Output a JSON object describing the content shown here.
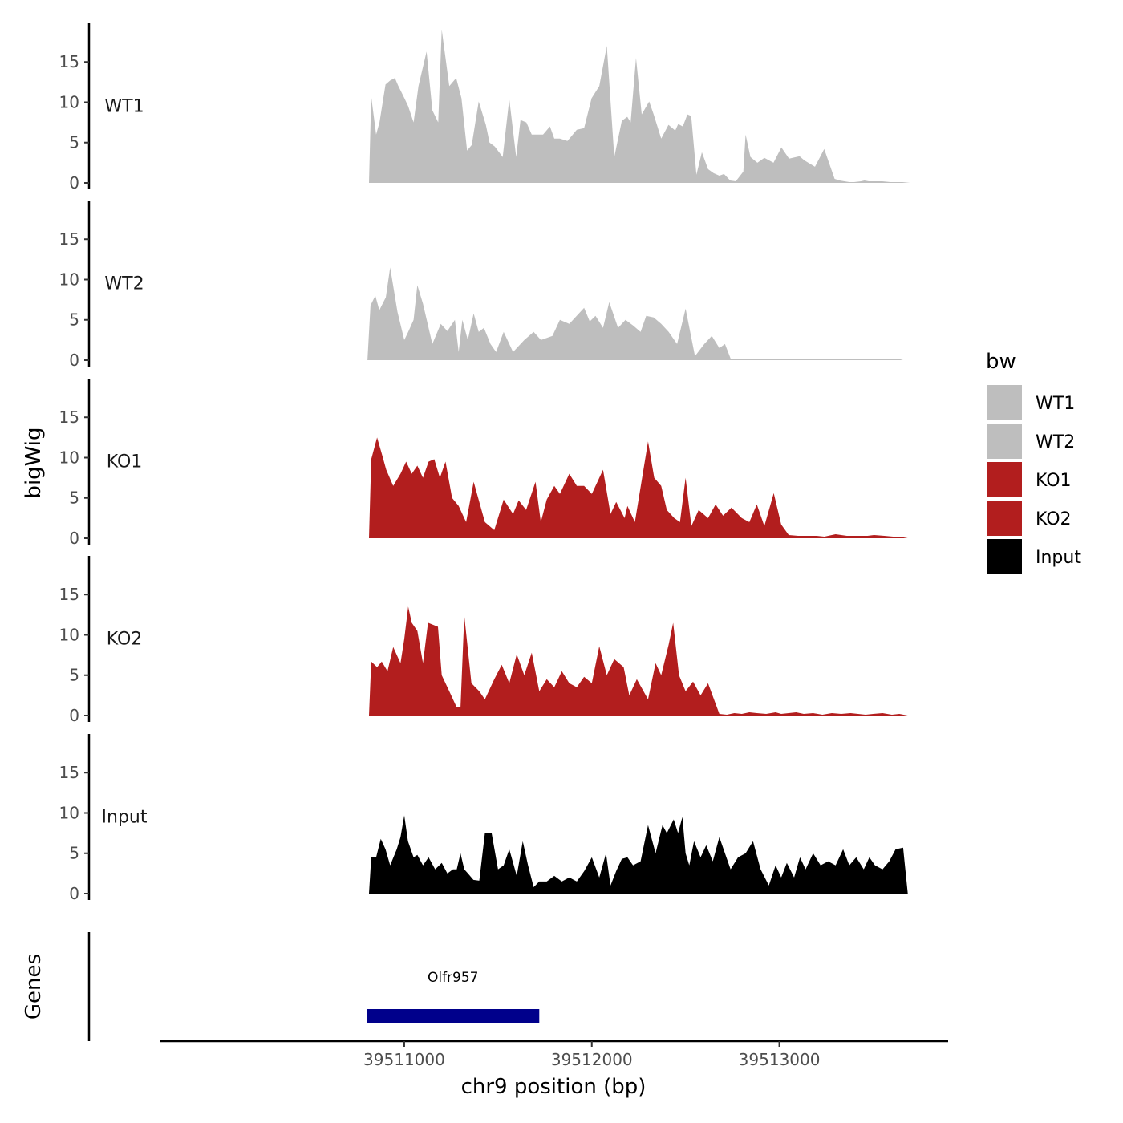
{
  "chart_data": {
    "type": "area",
    "ylabel": "bigWig",
    "xlabel": "chr9 position (bp)",
    "xlim": [
      39509700,
      39513900
    ],
    "ylim": [
      0,
      19.6
    ],
    "y_ticks": [
      0,
      5,
      10,
      15
    ],
    "x_ticks": [
      39511000,
      39512000,
      39513000
    ],
    "x_tick_labels": [
      "39511000",
      "39512000",
      "39513000"
    ],
    "grid": false,
    "legend": {
      "title": "bw",
      "position": "right",
      "entries": [
        {
          "label": "WT1",
          "color": "#bebebe"
        },
        {
          "label": "WT2",
          "color": "#bebebe"
        },
        {
          "label": "KO1",
          "color": "#b21e1e"
        },
        {
          "label": "KO2",
          "color": "#b21e1e"
        },
        {
          "label": "Input",
          "color": "#000000"
        }
      ]
    },
    "series": [
      {
        "name": "WT1",
        "color": "#bebebe",
        "x": [
          39510812,
          39510824,
          39510850,
          39510868,
          39510900,
          39510925,
          39510950,
          39510967,
          39511001,
          39511021,
          39511050,
          39511076,
          39511119,
          39511150,
          39511181,
          39511200,
          39511240,
          39511277,
          39511305,
          39511335,
          39511360,
          39511397,
          39511435,
          39511455,
          39511483,
          39511525,
          39511560,
          39511597,
          39511620,
          39511651,
          39511680,
          39511710,
          39511740,
          39511777,
          39511800,
          39511830,
          39511870,
          39511920,
          39511959,
          39511999,
          39512040,
          39512080,
          39512120,
          39512160,
          39512189,
          39512207,
          39512236,
          39512266,
          39512306,
          39512330,
          39512370,
          39512409,
          39512445,
          39512461,
          39512485,
          39512510,
          39512530,
          39512558,
          39512587,
          39512620,
          39512650,
          39512680,
          39512705,
          39512738,
          39512768,
          39512808,
          39512820,
          39512846,
          39512883,
          39512920,
          39512969,
          39513011,
          39513052,
          39513108,
          39513133,
          39513190,
          39513239,
          39513295,
          39513322,
          39513347,
          39513373,
          39513399,
          39513435,
          39513454,
          39513477,
          39513508,
          39513549,
          39513592,
          39513629,
          39513656,
          39513697
        ],
        "y": [
          0,
          10.7,
          6.0,
          7.5,
          12.2,
          12.7,
          13.0,
          12.1,
          10.5,
          9.5,
          7.5,
          12.0,
          16.3,
          9.0,
          7.5,
          19.0,
          12.0,
          13.0,
          10.5,
          4.0,
          4.7,
          10.1,
          7.2,
          5.0,
          4.5,
          3.2,
          10.4,
          3.2,
          7.8,
          7.5,
          6.0,
          6.0,
          6.0,
          7.0,
          5.5,
          5.5,
          5.2,
          6.6,
          6.8,
          10.5,
          12.0,
          17.0,
          3.2,
          7.7,
          8.2,
          7.5,
          15.5,
          8.5,
          10.1,
          8.5,
          5.5,
          7.2,
          6.5,
          7.3,
          7.0,
          8.5,
          8.3,
          1.0,
          3.8,
          1.7,
          1.2,
          0.9,
          1.1,
          0.3,
          0.2,
          1.4,
          6.0,
          3.2,
          2.5,
          3.1,
          2.5,
          4.4,
          3.0,
          3.3,
          2.8,
          2.0,
          4.2,
          0.5,
          0.3,
          0.2,
          0.1,
          0.1,
          0.2,
          0.3,
          0.2,
          0.2,
          0.2,
          0.1,
          0.1,
          0.1,
          0
        ]
      },
      {
        "name": "WT2",
        "color": "#bebebe",
        "x": [
          39510804,
          39510820,
          39510846,
          39510867,
          39510902,
          39510925,
          39510964,
          39511000,
          39511021,
          39511050,
          39511070,
          39511100,
          39511150,
          39511195,
          39511230,
          39511270,
          39511290,
          39511310,
          39511339,
          39511370,
          39511397,
          39511425,
          39511460,
          39511490,
          39511530,
          39511580,
          39511640,
          39511690,
          39511729,
          39511790,
          39511830,
          39511880,
          39511959,
          39511989,
          39512020,
          39512060,
          39512093,
          39512140,
          39512180,
          39512220,
          39512260,
          39512290,
          39512330,
          39512370,
          39512410,
          39512455,
          39512500,
          39512550,
          39512600,
          39512640,
          39512680,
          39512710,
          39512740,
          39512760,
          39512786,
          39512815,
          39512830,
          39512882,
          39512920,
          39512960,
          39512990,
          39513030,
          39513062,
          39513090,
          39513132,
          39513160,
          39513200,
          39513243,
          39513280,
          39513320,
          39513360,
          39513400,
          39513445,
          39513480,
          39513520,
          39513560,
          39513600,
          39513630,
          39513660
        ],
        "y": [
          0,
          6.8,
          8.0,
          6.2,
          7.8,
          11.5,
          6.0,
          2.5,
          3.5,
          5.0,
          9.3,
          7.0,
          2.0,
          4.5,
          3.6,
          5.0,
          1.0,
          5.0,
          2.5,
          5.8,
          3.5,
          4.0,
          2.0,
          1.0,
          3.5,
          1.0,
          2.5,
          3.5,
          2.5,
          3.0,
          5.0,
          4.5,
          6.5,
          4.8,
          5.5,
          4.0,
          7.2,
          4.0,
          5.0,
          4.3,
          3.5,
          5.5,
          5.3,
          4.5,
          3.5,
          2.0,
          6.4,
          0.5,
          2.0,
          3.0,
          1.5,
          2.0,
          0.2,
          0.1,
          0.2,
          0.1,
          0.1,
          0.1,
          0.1,
          0.2,
          0.1,
          0.1,
          0.1,
          0.1,
          0.2,
          0.1,
          0.1,
          0.1,
          0.2,
          0.2,
          0.1,
          0.1,
          0.1,
          0.1,
          0.1,
          0.1,
          0.2,
          0.2,
          0
        ]
      },
      {
        "name": "KO1",
        "color": "#b21e1e",
        "x": [
          39510812,
          39510824,
          39510855,
          39510880,
          39510904,
          39510941,
          39510980,
          39511010,
          39511040,
          39511070,
          39511100,
          39511130,
          39511160,
          39511190,
          39511220,
          39511255,
          39511290,
          39511330,
          39511370,
          39511430,
          39511480,
          39511530,
          39511580,
          39511610,
          39511650,
          39511700,
          39511728,
          39511760,
          39511800,
          39511830,
          39511880,
          39511920,
          39511959,
          39512000,
          39512060,
          39512100,
          39512130,
          39512175,
          39512190,
          39512230,
          39512300,
          39512333,
          39512370,
          39512400,
          39512440,
          39512470,
          39512500,
          39512531,
          39512570,
          39512620,
          39512660,
          39512700,
          39512745,
          39512800,
          39512840,
          39512880,
          39512920,
          39512970,
          39513010,
          39513050,
          39513100,
          39513150,
          39513200,
          39513240,
          39513300,
          39513360,
          39513420,
          39513470,
          39513505,
          39513560,
          39513607,
          39513640,
          39513685
        ],
        "y": [
          0,
          9.8,
          12.5,
          10.5,
          8.5,
          6.5,
          8.0,
          9.5,
          8.0,
          9.0,
          7.5,
          9.5,
          9.8,
          7.5,
          9.5,
          5.0,
          4.0,
          2.0,
          7.0,
          2.0,
          1.0,
          4.8,
          3.0,
          4.7,
          3.5,
          7.0,
          2.0,
          4.8,
          6.5,
          5.5,
          8.0,
          6.5,
          6.5,
          5.5,
          8.5,
          3.0,
          4.5,
          2.5,
          4.0,
          2.0,
          12.0,
          7.5,
          6.5,
          3.5,
          2.5,
          2.0,
          7.5,
          1.5,
          3.5,
          2.5,
          4.2,
          2.8,
          3.8,
          2.5,
          2.0,
          4.2,
          1.5,
          5.6,
          1.7,
          0.4,
          0.3,
          0.3,
          0.3,
          0.2,
          0.5,
          0.3,
          0.3,
          0.3,
          0.4,
          0.3,
          0.2,
          0.2,
          0
        ]
      },
      {
        "name": "KO2",
        "color": "#b21e1e",
        "x": [
          39510812,
          39510824,
          39510855,
          39510880,
          39510911,
          39510941,
          39510980,
          39511000,
          39511021,
          39511040,
          39511070,
          39511100,
          39511127,
          39511180,
          39511200,
          39511240,
          39511280,
          39511300,
          39511320,
          39511358,
          39511400,
          39511430,
          39511480,
          39511520,
          39511560,
          39511600,
          39511640,
          39511680,
          39511720,
          39511760,
          39511800,
          39511840,
          39511880,
          39511920,
          39511959,
          39512000,
          39512040,
          39512080,
          39512120,
          39512170,
          39512200,
          39512240,
          39512300,
          39512340,
          39512370,
          39512410,
          39512434,
          39512465,
          39512500,
          39512540,
          39512580,
          39512620,
          39512680,
          39512720,
          39512760,
          39512800,
          39512840,
          39512880,
          39512930,
          39512980,
          39513010,
          39513050,
          39513090,
          39513130,
          39513180,
          39513230,
          39513280,
          39513330,
          39513380,
          39513420,
          39513460,
          39513500,
          39513550,
          39513600,
          39513640,
          39513685
        ],
        "y": [
          0,
          6.7,
          6.0,
          6.7,
          5.5,
          8.5,
          6.5,
          9.5,
          13.5,
          11.5,
          10.5,
          6.5,
          11.5,
          11.0,
          5.0,
          3.0,
          1.0,
          1.0,
          12.4,
          4.0,
          3.0,
          2.0,
          4.5,
          6.3,
          4.0,
          7.6,
          5.0,
          7.8,
          3.0,
          4.5,
          3.5,
          5.5,
          4.0,
          3.5,
          4.8,
          4.0,
          8.6,
          5.0,
          7.0,
          6.0,
          2.5,
          4.5,
          2.0,
          6.5,
          5.0,
          8.8,
          11.5,
          5.0,
          3.0,
          4.2,
          2.5,
          4.0,
          0.2,
          0.1,
          0.3,
          0.2,
          0.4,
          0.3,
          0.2,
          0.4,
          0.2,
          0.3,
          0.4,
          0.2,
          0.3,
          0.1,
          0.3,
          0.2,
          0.3,
          0.2,
          0.1,
          0.2,
          0.3,
          0.1,
          0.2,
          0
        ]
      },
      {
        "name": "Input",
        "color": "#000000",
        "x": [
          39510812,
          39510824,
          39510850,
          39510875,
          39510900,
          39510925,
          39510960,
          39510980,
          39511000,
          39511020,
          39511050,
          39511070,
          39511100,
          39511130,
          39511165,
          39511200,
          39511230,
          39511260,
          39511280,
          39511300,
          39511320,
          39511340,
          39511369,
          39511400,
          39511430,
          39511466,
          39511500,
          39511530,
          39511560,
          39511600,
          39511632,
          39511660,
          39511690,
          39511720,
          39511760,
          39511800,
          39511840,
          39511880,
          39511920,
          39511960,
          39512000,
          39512040,
          39512076,
          39512100,
          39512130,
          39512160,
          39512190,
          39512220,
          39512260,
          39512300,
          39512340,
          39512377,
          39512400,
          39512437,
          39512460,
          39512483,
          39512500,
          39512520,
          39512545,
          39512580,
          39512610,
          39512645,
          39512680,
          39512710,
          39512740,
          39512780,
          39512820,
          39512860,
          39512900,
          39512944,
          39512980,
          39513010,
          39513040,
          39513079,
          39513110,
          39513140,
          39513180,
          39513220,
          39513260,
          39513300,
          39513340,
          39513373,
          39513410,
          39513450,
          39513480,
          39513510,
          39513550,
          39513586,
          39513620,
          39513660,
          39513685
        ],
        "y": [
          0,
          4.5,
          4.5,
          6.8,
          5.5,
          3.5,
          5.5,
          7.0,
          9.7,
          6.5,
          4.5,
          4.8,
          3.5,
          4.5,
          3.0,
          3.8,
          2.5,
          3.0,
          3.0,
          5.0,
          3.0,
          2.5,
          1.7,
          1.6,
          7.5,
          7.5,
          3.0,
          3.5,
          5.5,
          2.2,
          6.5,
          3.5,
          0.8,
          1.5,
          1.5,
          2.2,
          1.5,
          2.0,
          1.5,
          2.8,
          4.5,
          2.0,
          5.0,
          1.0,
          2.8,
          4.3,
          4.5,
          3.5,
          4.0,
          8.5,
          5.0,
          8.5,
          7.5,
          9.2,
          7.5,
          9.5,
          5.0,
          3.5,
          6.5,
          4.5,
          6.0,
          4.0,
          7.0,
          5.0,
          3.0,
          4.5,
          5.0,
          6.5,
          3.0,
          1.0,
          3.5,
          2.0,
          3.8,
          2.0,
          4.5,
          3.0,
          5.0,
          3.5,
          4.0,
          3.5,
          5.5,
          3.5,
          4.5,
          3.0,
          4.5,
          3.5,
          3.0,
          4.0,
          5.5,
          5.7,
          0
        ]
      }
    ],
    "genes": [
      {
        "name": "Olfr957",
        "start": 39510800,
        "end": 39511720,
        "color": "#00008b"
      }
    ],
    "genes_label": "Genes"
  }
}
